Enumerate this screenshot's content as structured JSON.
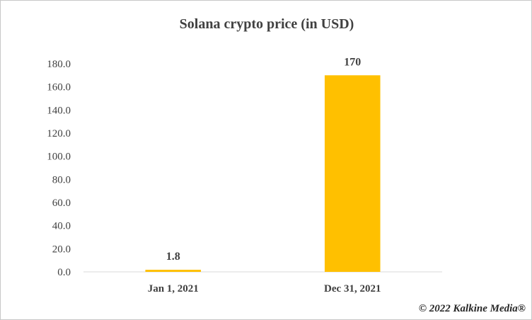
{
  "chart_data": {
    "type": "bar",
    "title": "Solana crypto price (in USD)",
    "xlabel": "",
    "ylabel": "",
    "categories": [
      "Jan 1, 2021",
      "Dec 31, 2021"
    ],
    "values": [
      1.8,
      170
    ],
    "data_labels": [
      "1.8",
      "170"
    ],
    "ylim": [
      0,
      180
    ],
    "y_ticks": [
      0,
      20,
      40,
      60,
      80,
      100,
      120,
      140,
      160,
      180
    ],
    "y_tick_labels": [
      "0.0",
      "20.0",
      "40.0",
      "60.0",
      "80.0",
      "100.0",
      "120.0",
      "140.0",
      "160.0",
      "180.0"
    ],
    "grid": false,
    "legend": "none",
    "bar_color": "#FFC000"
  },
  "credit": "© 2022 Kalkine Media®"
}
